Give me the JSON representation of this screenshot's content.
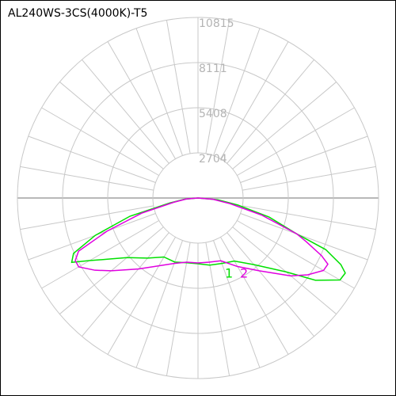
{
  "chart_data": {
    "type": "polar",
    "title": "AL240WS-3CS(4000K)-T5",
    "rlim": [
      0,
      10815
    ],
    "rticks": [
      2704,
      5408,
      8111,
      10815
    ],
    "angles": [
      -90,
      -85,
      -80,
      -75,
      -70,
      -66,
      -63,
      -60,
      -55,
      -50,
      -40,
      -30,
      -20,
      -10,
      0,
      10,
      20,
      30,
      40,
      50,
      55,
      60,
      63,
      65,
      68,
      70,
      75,
      80,
      85,
      90
    ],
    "series": [
      {
        "name": "1",
        "color": "#00e000",
        "values": [
          0,
          800,
          1710,
          4220,
          6550,
          8160,
          8490,
          7500,
          6360,
          5550,
          4700,
          4080,
          4080,
          3940,
          3940,
          4080,
          4170,
          4360,
          5210,
          6880,
          8590,
          9820,
          9900,
          9440,
          8250,
          6300,
          4410,
          2420,
          1190,
          0
        ]
      },
      {
        "name": "2",
        "color": "#e000e0",
        "values": [
          0,
          700,
          1470,
          3460,
          5790,
          7830,
          8250,
          8250,
          7540,
          6780,
          5550,
          4690,
          4170,
          3900,
          3890,
          3900,
          4000,
          4740,
          5690,
          7260,
          8020,
          8680,
          8730,
          8160,
          7000,
          6310,
          3940,
          1950,
          900,
          0
        ]
      }
    ]
  }
}
